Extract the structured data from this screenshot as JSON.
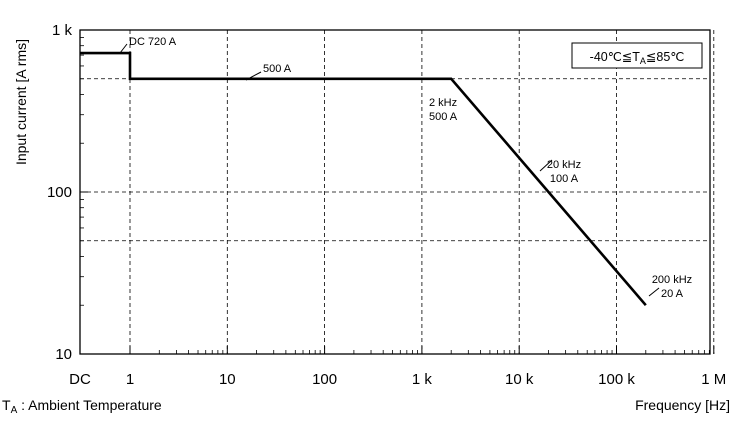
{
  "chart_data": {
    "type": "line",
    "xlabel": "Frequency [Hz]",
    "ylabel": "Input current [A rms]",
    "x_scale": "log",
    "y_scale": "log",
    "x_ticks": [
      {
        "label": "DC",
        "value": "DC"
      },
      {
        "label": "1",
        "value": 1
      },
      {
        "label": "10",
        "value": 10
      },
      {
        "label": "100",
        "value": 100
      },
      {
        "label": "1 k",
        "value": 1000
      },
      {
        "label": "10 k",
        "value": 10000
      },
      {
        "label": "100 k",
        "value": 100000
      },
      {
        "label": "1 M",
        "value": 1000000
      }
    ],
    "y_ticks": [
      {
        "label": "1 k",
        "value": 1000
      },
      {
        "label": "100",
        "value": 100
      },
      {
        "label": "10",
        "value": 10
      }
    ],
    "ylim": [
      10,
      1000
    ],
    "grid": true,
    "series": [
      {
        "points": [
          {
            "x": "DC",
            "y": 720
          },
          {
            "x": 1,
            "y": 720
          },
          {
            "x": 1,
            "y": 500
          },
          {
            "x": 2000,
            "y": 500
          },
          {
            "x": 20000,
            "y": 100
          },
          {
            "x": 200000,
            "y": 20
          }
        ]
      }
    ],
    "annotations": [
      {
        "text": "DC 720 A"
      },
      {
        "text": "500 A"
      },
      {
        "lines": [
          "2 kHz",
          "500 A"
        ]
      },
      {
        "lines": [
          "20 kHz",
          "100 A"
        ]
      },
      {
        "lines": [
          "200 kHz",
          "20 A"
        ]
      }
    ],
    "condition_box": {
      "prefix": "-40℃≦T",
      "subscript": "A",
      "suffix": "≦85℃"
    },
    "footnote": {
      "symbol": "T",
      "subscript": "A",
      "text": " : Ambient Temperature"
    }
  }
}
